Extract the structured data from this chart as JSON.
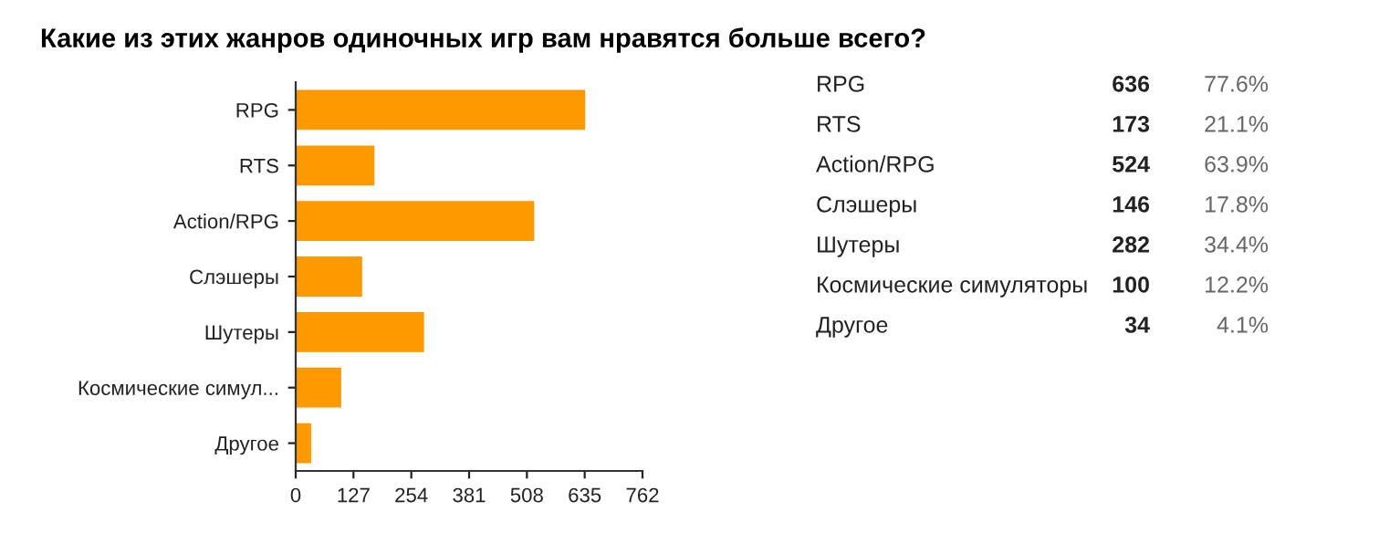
{
  "chart_data": [
    {
      "type": "bar",
      "orientation": "horizontal",
      "title": "Какие из этих жанров одиночных игр вам нравятся больше всего?",
      "categories": [
        "RPG",
        "RTS",
        "Action/RPG",
        "Слэшеры",
        "Шутеры",
        "Космические симул...",
        "Другое"
      ],
      "values": [
        636,
        173,
        524,
        146,
        282,
        100,
        34
      ],
      "color": "#ff9900",
      "xlim": [
        0,
        762
      ],
      "xticks": [
        0,
        127,
        254,
        381,
        508,
        635,
        762
      ],
      "grid": false,
      "legend": false
    },
    {
      "type": "other",
      "categories": [
        "RPG",
        "RTS",
        "Action/RPG",
        "Слэшеры",
        "Шутеры",
        "Космические симуляторы",
        "Другое"
      ],
      "values": [
        636,
        173,
        524,
        146,
        282,
        100,
        34
      ],
      "data_labels": true,
      "annotations": [
        "77.6%",
        "21.1%",
        "63.9%",
        "17.8%",
        "34.4%",
        "12.2%",
        "4.1%"
      ]
    }
  ]
}
